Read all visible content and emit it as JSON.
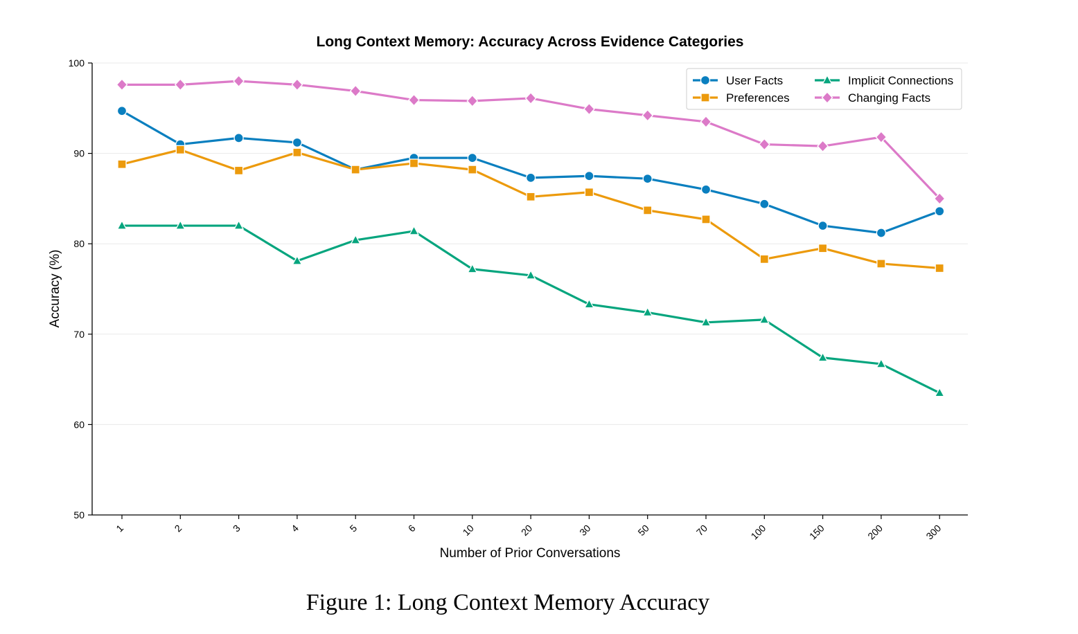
{
  "figure": {
    "caption": "Figure 1: Long Context Memory Accuracy"
  },
  "chart_data": {
    "type": "line",
    "title": "Long Context Memory: Accuracy Across Evidence Categories",
    "xlabel": "Number of Prior Conversations",
    "ylabel": "Accuracy (%)",
    "categories": [
      "1",
      "2",
      "3",
      "4",
      "5",
      "6",
      "10",
      "20",
      "30",
      "50",
      "70",
      "100",
      "150",
      "200",
      "300"
    ],
    "ylim": [
      50,
      100
    ],
    "yticks": [
      50,
      60,
      70,
      80,
      90,
      100
    ],
    "grid": true,
    "legend_position": "top-right",
    "series": [
      {
        "name": "User Facts",
        "color": "#0a7fbf",
        "marker": "circle",
        "values": [
          94.7,
          91.0,
          91.7,
          91.2,
          88.2,
          89.5,
          89.5,
          87.3,
          87.5,
          87.2,
          86.0,
          84.4,
          82.0,
          81.2,
          83.6
        ]
      },
      {
        "name": "Preferences",
        "color": "#ec9a0c",
        "marker": "square",
        "values": [
          88.8,
          90.4,
          88.1,
          90.1,
          88.2,
          88.9,
          88.2,
          85.2,
          85.7,
          83.7,
          82.7,
          78.3,
          79.5,
          77.8,
          77.3
        ]
      },
      {
        "name": "Implicit Connections",
        "color": "#06a57e",
        "marker": "triangle",
        "values": [
          82.0,
          82.0,
          82.0,
          78.1,
          80.4,
          81.4,
          77.2,
          76.5,
          73.3,
          72.4,
          71.3,
          71.6,
          67.4,
          66.7,
          63.5
        ]
      },
      {
        "name": "Changing Facts",
        "color": "#dc7ac8",
        "marker": "diamond",
        "values": [
          97.6,
          97.6,
          98.0,
          97.6,
          96.9,
          95.9,
          95.8,
          96.1,
          94.9,
          94.2,
          93.5,
          91.0,
          90.8,
          91.8,
          85.0
        ]
      }
    ]
  }
}
